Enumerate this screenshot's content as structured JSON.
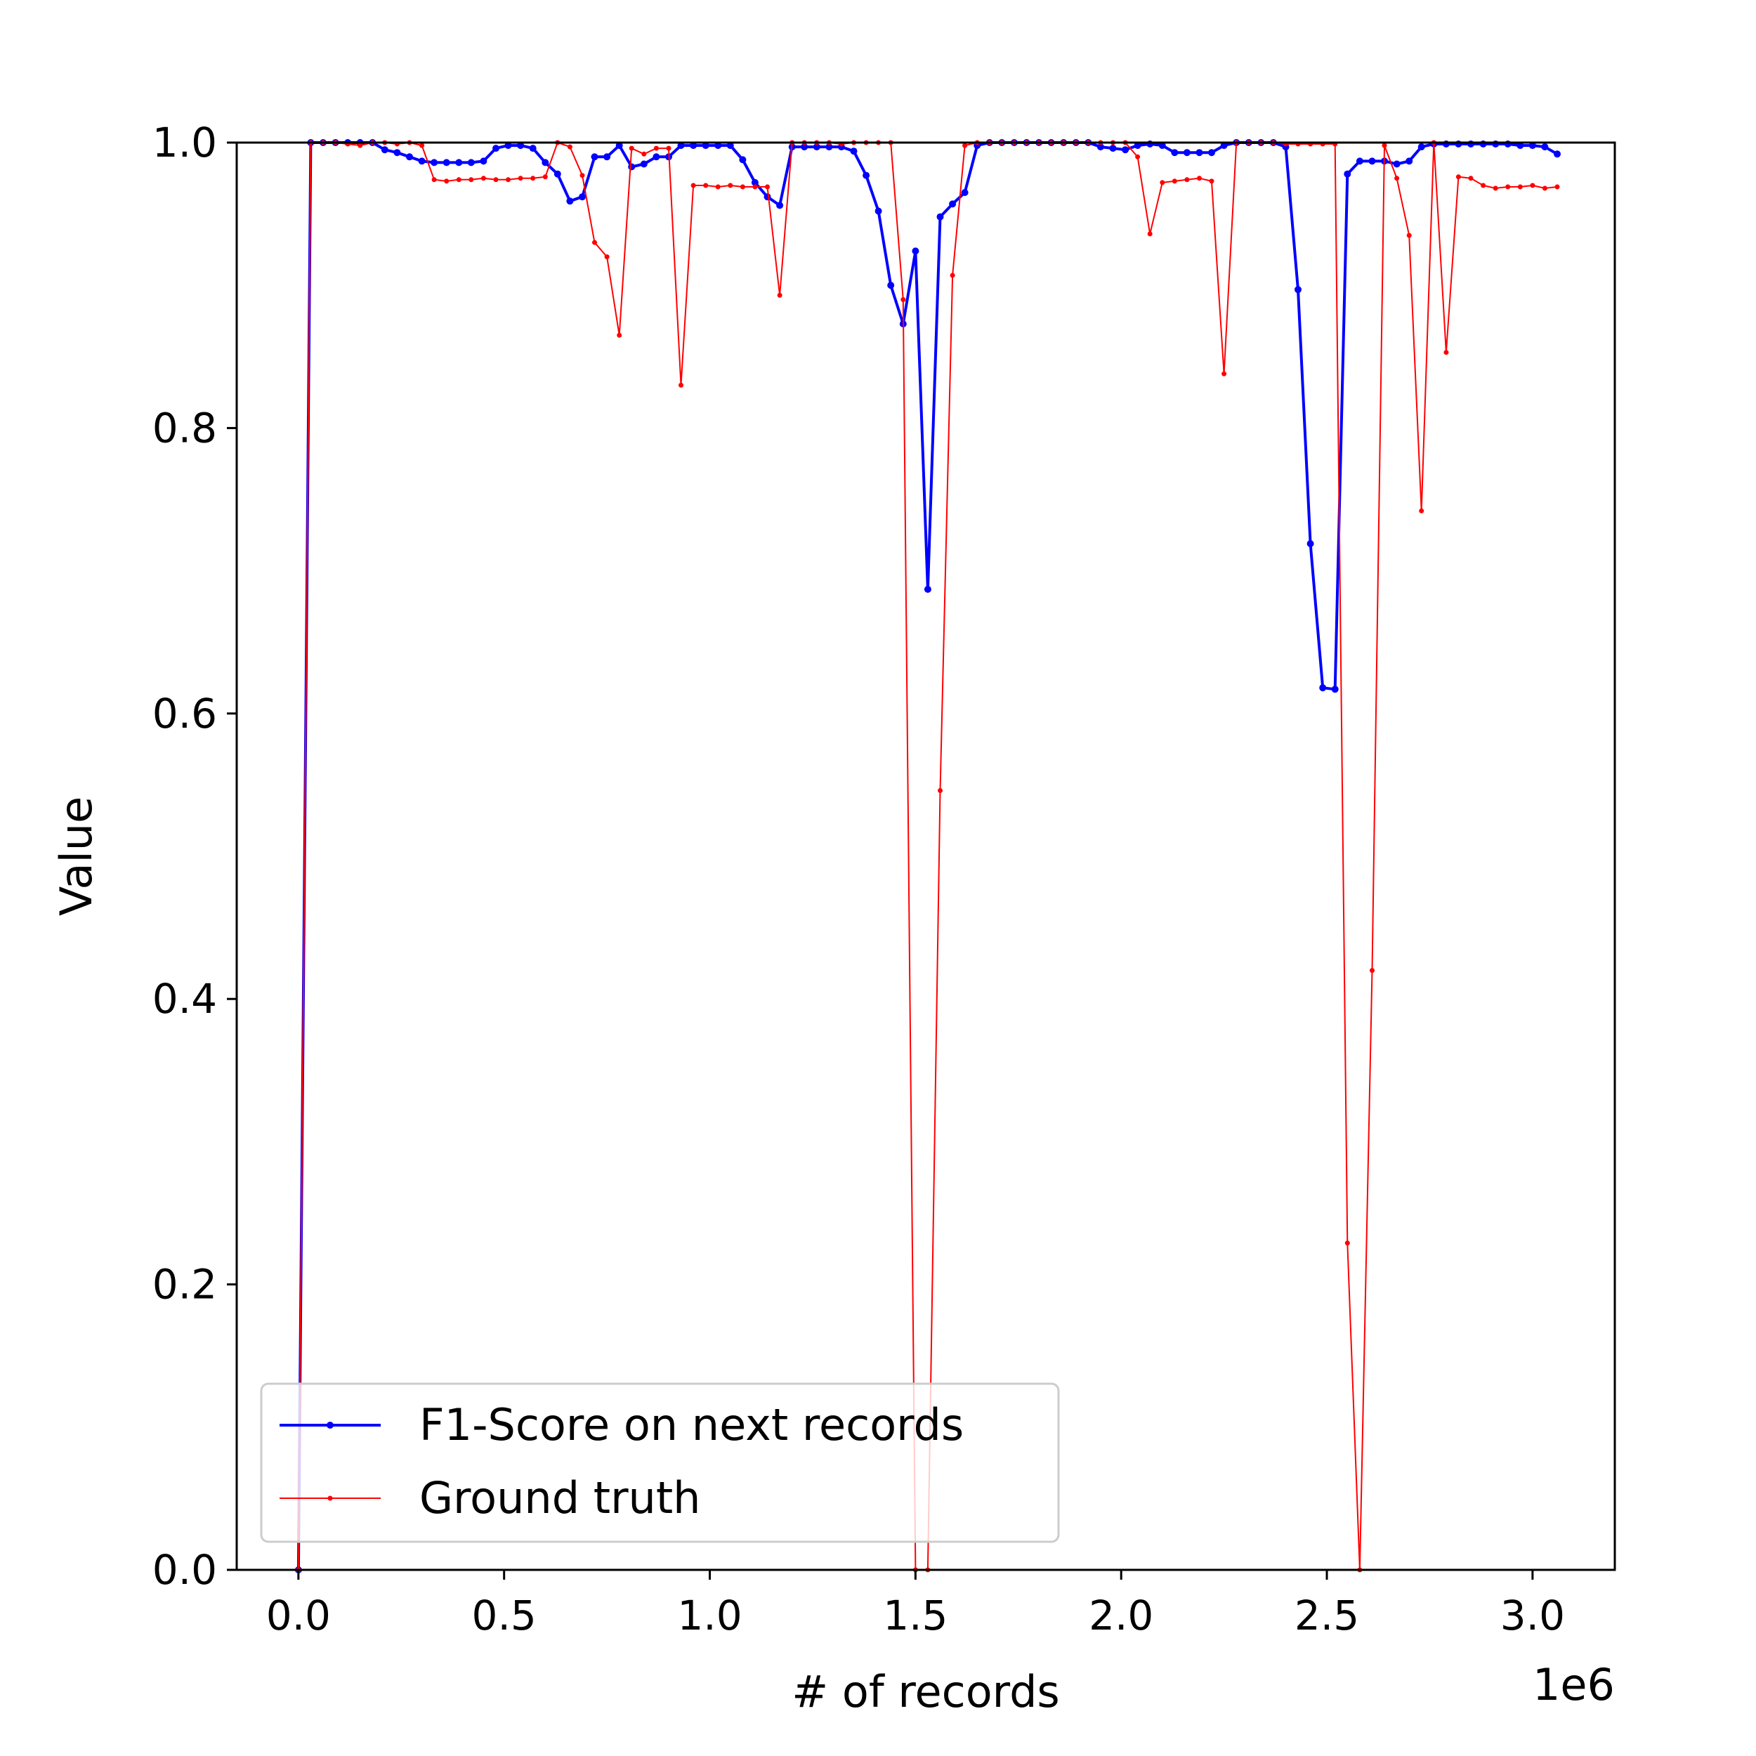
{
  "chart_data": {
    "type": "line",
    "title": "",
    "xlabel": "# of records",
    "ylabel": "Value",
    "x_offset_text": "1e6",
    "xlim": [
      -0.15,
      3.2
    ],
    "ylim": [
      0.0,
      1.0
    ],
    "x_scale_factor": 1000000,
    "xticks": [
      0.0,
      0.5,
      1.0,
      1.5,
      2.0,
      2.5,
      3.0
    ],
    "xtick_labels": [
      "0.0",
      "0.5",
      "1.0",
      "1.5",
      "2.0",
      "2.5",
      "3.0"
    ],
    "yticks": [
      0.0,
      0.2,
      0.4,
      0.6,
      0.8,
      1.0
    ],
    "ytick_labels": [
      "0.0",
      "0.2",
      "0.4",
      "0.6",
      "0.8",
      "1.0"
    ],
    "grid": false,
    "legend_position": "lower-left",
    "series": [
      {
        "name": "F1-Score on next records",
        "color": "#0000ff",
        "linewidth": "thick",
        "x": [
          0.0,
          0.03,
          0.06,
          0.09,
          0.12,
          0.15,
          0.18,
          0.21,
          0.24,
          0.27,
          0.3,
          0.33,
          0.36,
          0.39,
          0.42,
          0.45,
          0.48,
          0.51,
          0.54,
          0.57,
          0.6,
          0.63,
          0.66,
          0.69,
          0.72,
          0.75,
          0.78,
          0.81,
          0.84,
          0.87,
          0.9,
          0.93,
          0.96,
          0.99,
          1.02,
          1.05,
          1.08,
          1.11,
          1.14,
          1.17,
          1.2,
          1.23,
          1.26,
          1.29,
          1.32,
          1.35,
          1.38,
          1.41,
          1.44,
          1.47,
          1.5,
          1.53,
          1.56,
          1.59,
          1.62,
          1.65,
          1.68,
          1.71,
          1.74,
          1.77,
          1.8,
          1.83,
          1.86,
          1.89,
          1.92,
          1.95,
          1.98,
          2.01,
          2.04,
          2.07,
          2.1,
          2.13,
          2.16,
          2.19,
          2.22,
          2.25,
          2.28,
          2.31,
          2.34,
          2.37,
          2.4,
          2.43,
          2.46,
          2.49,
          2.52,
          2.55,
          2.58,
          2.61,
          2.64,
          2.67,
          2.7,
          2.73,
          2.76,
          2.79,
          2.82,
          2.85,
          2.88,
          2.91,
          2.94,
          2.97,
          3.0,
          3.03,
          3.06
        ],
        "y": [
          0.0,
          1.0,
          1.0,
          1.0,
          1.0,
          1.0,
          1.0,
          0.995,
          0.993,
          0.99,
          0.987,
          0.986,
          0.986,
          0.986,
          0.986,
          0.987,
          0.996,
          0.998,
          0.998,
          0.996,
          0.986,
          0.978,
          0.959,
          0.962,
          0.99,
          0.99,
          0.998,
          0.983,
          0.985,
          0.99,
          0.99,
          0.998,
          0.998,
          0.998,
          0.998,
          0.998,
          0.988,
          0.972,
          0.962,
          0.956,
          0.997,
          0.997,
          0.997,
          0.997,
          0.997,
          0.994,
          0.977,
          0.952,
          0.9,
          0.873,
          0.924,
          0.687,
          0.948,
          0.957,
          0.965,
          0.998,
          1.0,
          1.0,
          1.0,
          1.0,
          1.0,
          1.0,
          1.0,
          1.0,
          1.0,
          0.997,
          0.996,
          0.995,
          0.998,
          0.999,
          0.998,
          0.993,
          0.993,
          0.993,
          0.993,
          0.998,
          1.0,
          1.0,
          1.0,
          1.0,
          0.997,
          0.897,
          0.719,
          0.618,
          0.617,
          0.978,
          0.987,
          0.987,
          0.987,
          0.985,
          0.987,
          0.997,
          0.999,
          0.999,
          0.999,
          0.999,
          0.999,
          0.999,
          0.999,
          0.998,
          0.998,
          0.997,
          0.992
        ]
      },
      {
        "name": "Ground truth",
        "color": "#ff0000",
        "linewidth": "thin",
        "x": [
          0.0,
          0.03,
          0.06,
          0.09,
          0.12,
          0.15,
          0.18,
          0.21,
          0.24,
          0.27,
          0.3,
          0.33,
          0.36,
          0.39,
          0.42,
          0.45,
          0.48,
          0.51,
          0.54,
          0.57,
          0.6,
          0.63,
          0.66,
          0.69,
          0.72,
          0.75,
          0.78,
          0.81,
          0.84,
          0.87,
          0.9,
          0.93,
          0.96,
          0.99,
          1.02,
          1.05,
          1.08,
          1.11,
          1.14,
          1.17,
          1.2,
          1.23,
          1.26,
          1.29,
          1.32,
          1.35,
          1.38,
          1.41,
          1.44,
          1.47,
          1.5,
          1.53,
          1.56,
          1.59,
          1.62,
          1.65,
          1.68,
          1.71,
          1.74,
          1.77,
          1.8,
          1.83,
          1.86,
          1.89,
          1.92,
          1.95,
          1.98,
          2.01,
          2.04,
          2.07,
          2.1,
          2.13,
          2.16,
          2.19,
          2.22,
          2.25,
          2.28,
          2.31,
          2.34,
          2.37,
          2.4,
          2.43,
          2.46,
          2.49,
          2.52,
          2.55,
          2.58,
          2.61,
          2.64,
          2.67,
          2.7,
          2.73,
          2.76,
          2.79,
          2.82,
          2.85,
          2.88,
          2.91,
          2.94,
          2.97,
          3.0,
          3.03,
          3.06
        ],
        "y": [
          0.0,
          1.0,
          1.0,
          1.0,
          0.999,
          0.998,
          1.0,
          1.0,
          0.999,
          1.0,
          0.998,
          0.974,
          0.973,
          0.974,
          0.974,
          0.975,
          0.974,
          0.974,
          0.975,
          0.975,
          0.976,
          1.0,
          0.997,
          0.977,
          0.93,
          0.92,
          0.865,
          0.996,
          0.992,
          0.996,
          0.996,
          0.83,
          0.97,
          0.97,
          0.969,
          0.97,
          0.969,
          0.969,
          0.969,
          0.893,
          1.0,
          1.0,
          1.0,
          1.0,
          0.999,
          1.0,
          1.0,
          1.0,
          1.0,
          0.89,
          0.0,
          0.0,
          0.546,
          0.907,
          0.998,
          1.0,
          1.0,
          1.0,
          1.0,
          1.0,
          1.0,
          1.0,
          1.0,
          1.0,
          1.0,
          1.0,
          1.0,
          1.0,
          0.99,
          0.936,
          0.972,
          0.973,
          0.974,
          0.975,
          0.973,
          0.838,
          1.0,
          1.0,
          1.0,
          1.0,
          0.999,
          0.999,
          0.999,
          0.999,
          0.999,
          0.229,
          0.0,
          0.42,
          0.998,
          0.975,
          0.935,
          0.742,
          1.0,
          0.853,
          0.976,
          0.975,
          0.97,
          0.968,
          0.969,
          0.969,
          0.97,
          0.968,
          0.969
        ]
      }
    ]
  }
}
